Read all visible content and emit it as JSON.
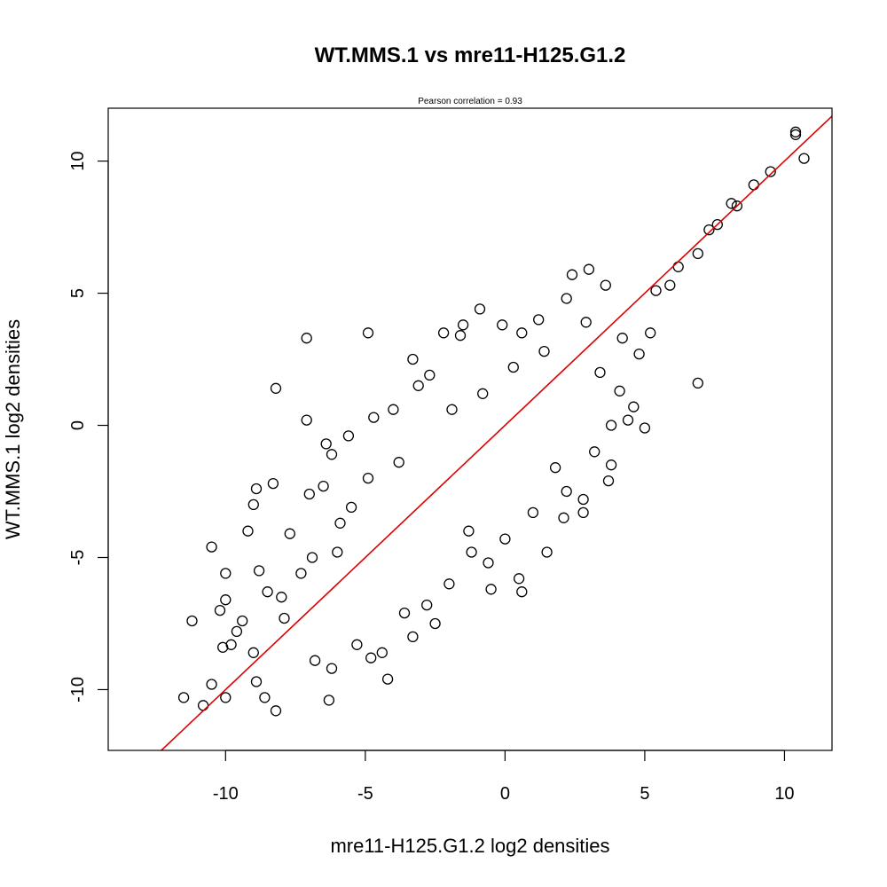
{
  "chart_data": {
    "type": "scatter",
    "title": "WT.MMS.1 vs mre11-H125.G1.2",
    "subtitle": "Pearson correlation =  0.93",
    "xlabel": "mre11-H125.G1.2 log2 densities",
    "ylabel": "WT.MMS.1 log2 densities",
    "xlim": [
      -14.2,
      11.7
    ],
    "ylim": [
      -12.3,
      12.0
    ],
    "x_ticks": [
      -10,
      -5,
      0,
      5,
      10
    ],
    "y_ticks": [
      -10,
      -5,
      0,
      5,
      10
    ],
    "x_tick_labels": [
      "-10",
      "-5",
      "0",
      "5",
      "10"
    ],
    "y_tick_labels": [
      "-10",
      "-5",
      "0",
      "5",
      "10"
    ],
    "grid": false,
    "marker": "open-circle",
    "point_color": "#000000",
    "fit_line": {
      "slope": 1.0,
      "intercept": 0.0,
      "color": "#dd0000"
    },
    "points": [
      [
        10.4,
        11.1
      ],
      [
        10.4,
        11.0
      ],
      [
        10.7,
        10.1
      ],
      [
        9.5,
        9.6
      ],
      [
        8.9,
        9.1
      ],
      [
        8.3,
        8.3
      ],
      [
        8.1,
        8.4
      ],
      [
        7.6,
        7.6
      ],
      [
        7.3,
        7.4
      ],
      [
        6.9,
        6.5
      ],
      [
        6.2,
        6.0
      ],
      [
        5.9,
        5.3
      ],
      [
        5.4,
        5.1
      ],
      [
        6.9,
        1.6
      ],
      [
        5.2,
        3.5
      ],
      [
        4.2,
        3.3
      ],
      [
        4.6,
        0.7
      ],
      [
        4.4,
        0.2
      ],
      [
        5.0,
        -0.1
      ],
      [
        3.8,
        0.0
      ],
      [
        3.7,
        -2.1
      ],
      [
        3.8,
        -1.5
      ],
      [
        2.8,
        -2.8
      ],
      [
        2.8,
        -3.3
      ],
      [
        2.1,
        -3.5
      ],
      [
        1.0,
        -3.3
      ],
      [
        -0.5,
        -6.2
      ],
      [
        0.6,
        -6.3
      ],
      [
        0.5,
        -5.8
      ],
      [
        -1.2,
        -4.8
      ],
      [
        -2.5,
        -7.5
      ],
      [
        -2.8,
        -6.8
      ],
      [
        -3.3,
        -8.0
      ],
      [
        -4.2,
        -9.6
      ],
      [
        -4.8,
        -8.8
      ],
      [
        -6.3,
        -10.4
      ],
      [
        -8.2,
        -10.8
      ],
      [
        -8.6,
        -10.3
      ],
      [
        -8.9,
        -9.7
      ],
      [
        -10.0,
        -10.3
      ],
      [
        -10.5,
        -9.8
      ],
      [
        -10.8,
        -10.6
      ],
      [
        -11.5,
        -10.3
      ],
      [
        -11.2,
        -7.4
      ],
      [
        -10.1,
        -8.4
      ],
      [
        -9.8,
        -8.3
      ],
      [
        -9.6,
        -7.8
      ],
      [
        -9.4,
        -7.4
      ],
      [
        -10.2,
        -7.0
      ],
      [
        -10.0,
        -6.6
      ],
      [
        -10.5,
        -4.6
      ],
      [
        -10.0,
        -5.6
      ],
      [
        -9.2,
        -4.0
      ],
      [
        -9.0,
        -3.0
      ],
      [
        -8.9,
        -2.4
      ],
      [
        -8.3,
        -2.2
      ],
      [
        -8.2,
        1.4
      ],
      [
        -7.1,
        3.3
      ],
      [
        -7.1,
        0.2
      ],
      [
        -4.9,
        3.5
      ],
      [
        -3.3,
        2.5
      ],
      [
        -2.2,
        3.5
      ],
      [
        -1.6,
        3.4
      ],
      [
        -1.5,
        3.8
      ],
      [
        -0.9,
        4.4
      ],
      [
        -0.1,
        3.8
      ],
      [
        0.6,
        3.5
      ],
      [
        1.2,
        4.0
      ],
      [
        2.2,
        4.8
      ],
      [
        3.0,
        5.9
      ],
      [
        3.6,
        5.3
      ],
      [
        2.4,
        5.7
      ],
      [
        -6.4,
        -0.7
      ],
      [
        -6.2,
        -1.1
      ],
      [
        -5.6,
        -0.4
      ],
      [
        -4.7,
        0.3
      ],
      [
        -4.0,
        0.6
      ],
      [
        -3.1,
        1.5
      ],
      [
        -2.7,
        1.9
      ],
      [
        -7.0,
        -2.6
      ],
      [
        -6.5,
        -2.3
      ],
      [
        -6.0,
        -4.8
      ],
      [
        -5.5,
        -3.1
      ],
      [
        -7.3,
        -5.6
      ],
      [
        -7.7,
        -4.1
      ],
      [
        -8.5,
        -6.3
      ],
      [
        -8.8,
        -5.5
      ],
      [
        -7.9,
        -7.3
      ],
      [
        -6.8,
        -8.9
      ],
      [
        -6.2,
        -9.2
      ],
      [
        -5.3,
        -8.3
      ],
      [
        -4.4,
        -8.6
      ],
      [
        -3.6,
        -7.1
      ],
      [
        -2.0,
        -6.0
      ],
      [
        -1.3,
        -4.0
      ],
      [
        -0.6,
        -5.2
      ],
      [
        0.0,
        -4.3
      ],
      [
        1.5,
        -4.8
      ],
      [
        2.2,
        -2.5
      ],
      [
        3.2,
        -1.0
      ],
      [
        1.8,
        -1.6
      ],
      [
        4.1,
        1.3
      ],
      [
        3.4,
        2.0
      ],
      [
        4.8,
        2.7
      ],
      [
        2.9,
        3.9
      ],
      [
        1.4,
        2.8
      ],
      [
        0.3,
        2.2
      ],
      [
        -0.8,
        1.2
      ],
      [
        -1.9,
        0.6
      ],
      [
        -3.8,
        -1.4
      ],
      [
        -4.9,
        -2.0
      ],
      [
        -5.9,
        -3.7
      ],
      [
        -6.9,
        -5.0
      ],
      [
        -8.0,
        -6.5
      ],
      [
        -9.0,
        -8.6
      ]
    ]
  }
}
